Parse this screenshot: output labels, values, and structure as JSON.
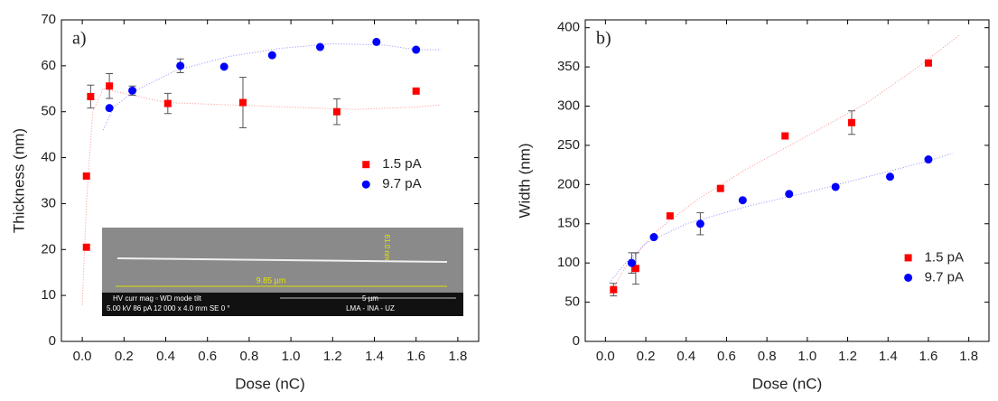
{
  "chart_data": [
    {
      "type": "scatter",
      "label": "a)",
      "x_label": "Dose (nC)",
      "y_label": "Thickness (nm)",
      "xlim": [
        -0.1,
        1.9
      ],
      "ylim": [
        0,
        70
      ],
      "xticks": [
        {
          "value": 0,
          "label": "0.0"
        },
        0.2,
        0.4,
        0.6,
        0.8,
        {
          "value": 1,
          "label": "1.0"
        },
        1.2,
        1.4,
        1.6,
        1.8
      ],
      "yticks": [
        0,
        10,
        20,
        30,
        40,
        50,
        60,
        70
      ],
      "legend": "center right",
      "series": [
        {
          "name": "1.5 pA",
          "color": "#ff0000",
          "marker": "square",
          "x": [
            0.02,
            0.02,
            0.04,
            0.13,
            0.41,
            0.77,
            1.22,
            1.6
          ],
          "values": [
            20.5,
            36,
            53.3,
            55.6,
            51.8,
            52,
            50,
            54.5
          ],
          "errors": [
            null,
            null,
            2.5,
            2.7,
            2.2,
            5.5,
            2.8,
            null
          ],
          "fit_x": [
            0.0,
            0.02,
            0.05,
            0.1,
            0.2,
            0.4,
            0.7,
            1.0,
            1.3,
            1.6,
            1.72
          ],
          "fit_values": [
            8,
            30,
            50,
            55,
            54,
            52,
            51.5,
            51,
            50.5,
            51,
            51.5
          ]
        },
        {
          "name": "9.7 pA",
          "color": "#0000ff",
          "marker": "circle",
          "x": [
            0.13,
            0.24,
            0.47,
            0.68,
            0.91,
            1.14,
            1.41,
            1.6
          ],
          "values": [
            50.8,
            54.6,
            60,
            59.8,
            62.3,
            64.1,
            65.2,
            63.5
          ],
          "errors": [
            null,
            1,
            1.5,
            null,
            null,
            null,
            null,
            null
          ],
          "fit_x": [
            0.1,
            0.15,
            0.25,
            0.45,
            0.7,
            0.95,
            1.2,
            1.45,
            1.6,
            1.72
          ],
          "fit_values": [
            46,
            51,
            54.5,
            59,
            62,
            63.8,
            64.8,
            64.5,
            63.5,
            63.5
          ]
        }
      ]
    },
    {
      "type": "scatter",
      "label": "b)",
      "x_label": "Dose (nC)",
      "y_label": "Width (nm)",
      "xlim": [
        -0.1,
        1.9
      ],
      "ylim": [
        0,
        410
      ],
      "xticks": [
        {
          "value": 0,
          "label": "0.0"
        },
        0.2,
        0.4,
        0.6,
        0.8,
        {
          "value": 1,
          "label": "1.0"
        },
        1.2,
        1.4,
        1.6,
        1.8
      ],
      "yticks": [
        0,
        50,
        100,
        150,
        200,
        250,
        300,
        350,
        400
      ],
      "legend": "lower right",
      "series": [
        {
          "name": "1.5 pA",
          "color": "#ff0000",
          "marker": "square",
          "x": [
            0.04,
            0.15,
            0.32,
            0.57,
            0.89,
            1.22,
            1.6
          ],
          "values": [
            66,
            93,
            160,
            195,
            262,
            279,
            355
          ],
          "errors": [
            8,
            20,
            null,
            null,
            null,
            15,
            null
          ],
          "fit_x": [
            0.02,
            0.1,
            0.25,
            0.45,
            0.7,
            1.0,
            1.3,
            1.55,
            1.75
          ],
          "fit_values": [
            60,
            95,
            140,
            180,
            220,
            262,
            305,
            350,
            390
          ]
        },
        {
          "name": "9.7 pA",
          "color": "#0000ff",
          "marker": "circle",
          "x": [
            0.13,
            0.24,
            0.47,
            0.68,
            0.91,
            1.14,
            1.41,
            1.6
          ],
          "values": [
            100,
            133,
            150,
            180,
            188,
            197,
            210,
            232
          ],
          "errors": [
            13,
            null,
            14,
            null,
            null,
            null,
            null,
            null
          ],
          "fit_x": [
            0.02,
            0.1,
            0.2,
            0.4,
            0.7,
            1.0,
            1.3,
            1.6,
            1.72
          ],
          "fit_values": [
            75,
            100,
            125,
            150,
            172,
            190,
            210,
            230,
            240
          ]
        }
      ]
    }
  ],
  "inset": {
    "scale_length": "9.85 µm",
    "scale_width": "61.0 nm",
    "info_header": "HV    curr   mag ▫    WD    mode  tilt",
    "info_values": "5.00 kV 86 pA 12 000 x 4.0 mm  SE   0 °",
    "scale_bar": "5 µm",
    "lab": "LMA - INA - UZ"
  }
}
